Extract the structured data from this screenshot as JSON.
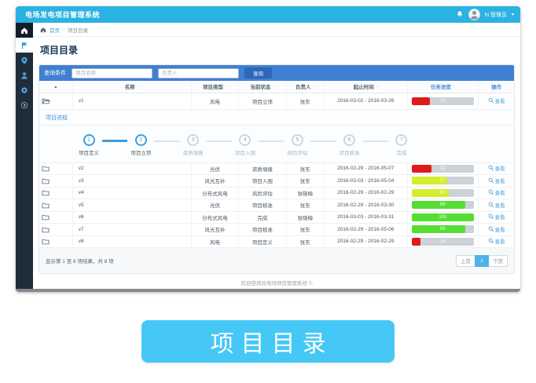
{
  "topbar": {
    "title": "电场发电项目管理系统",
    "user_greeting": "hi 管理员",
    "icons": [
      "bell-icon",
      "avatar",
      "caret-down-icon"
    ]
  },
  "sidebar": {
    "icons": [
      "home-icon",
      "flag-icon",
      "location-pin-icon",
      "user-icon",
      "gear-icon",
      "power-icon"
    ]
  },
  "breadcrumb": {
    "home": "首页",
    "separator": "›",
    "current": "项目目录"
  },
  "page": {
    "title": "项目目录"
  },
  "search": {
    "label": "查询条件",
    "name_placeholder": "项目名称",
    "owner_placeholder": "负责人",
    "submit": "查询"
  },
  "table": {
    "action_label": "查看",
    "headers": [
      {
        "label": "名称",
        "sortable": true,
        "accent": false
      },
      {
        "label": "项目类型",
        "sortable": true,
        "accent": false
      },
      {
        "label": "当前状态",
        "sortable": true,
        "accent": false
      },
      {
        "label": "负责人",
        "sortable": true,
        "accent": false
      },
      {
        "label": "起止时间",
        "sortable": true,
        "accent": false
      },
      {
        "label": "任务进度",
        "sortable": true,
        "accent": true
      },
      {
        "label": "操作",
        "sortable": false,
        "accent": true
      }
    ],
    "rows": [
      {
        "name": "v1",
        "type": "风电",
        "status": "项目立项",
        "owner": "张东",
        "period": "2016-03-02 - 2016-03-26",
        "progress": 29,
        "bar_color": "#dd1c1a",
        "expanded": true
      },
      {
        "name": "v2",
        "type": "光伏",
        "status": "资质填报",
        "owner": "张东",
        "period": "2016-02-29 - 2016-05-07",
        "progress": 32,
        "bar_color": "#dd1c1a",
        "expanded": false
      },
      {
        "name": "v3",
        "type": "风光互补",
        "status": "项目入围",
        "owner": "张东",
        "period": "2016-03-03 - 2016-05-04",
        "progress": 57,
        "bar_color": "#d4ee2e",
        "expanded": false
      },
      {
        "name": "v4",
        "type": "分布式风电",
        "status": "风险评估",
        "owner": "张晓梅",
        "period": "2016-02-29 - 2016-02-29",
        "progress": 60,
        "bar_color": "#d4ee2e",
        "expanded": false
      },
      {
        "name": "v5",
        "type": "光伏",
        "status": "项目核准",
        "owner": "张东",
        "period": "2016-02-29 - 2016-03-30",
        "progress": 86,
        "bar_color": "#55dd33",
        "expanded": false
      },
      {
        "name": "v6",
        "type": "分布式风电",
        "status": "完成",
        "owner": "张晓梅",
        "period": "2016-03-03 - 2016-03-31",
        "progress": 100,
        "bar_color": "#55dd33",
        "expanded": false
      },
      {
        "name": "v7",
        "type": "风光互补",
        "status": "项目核准",
        "owner": "张东",
        "period": "2016-02-29 - 2016-05-06",
        "progress": 86,
        "bar_color": "#55dd33",
        "expanded": false
      },
      {
        "name": "v8",
        "type": "风电",
        "status": "项目定义",
        "owner": "张东",
        "period": "2016-02-29 - 2016-02-29",
        "progress": 14,
        "bar_color": "#dd1c1a",
        "expanded": false
      }
    ]
  },
  "process": {
    "title": "项目进程",
    "steps": [
      {
        "num": "1",
        "label": "项目定义",
        "active": true
      },
      {
        "num": "2",
        "label": "项目立项",
        "active": true
      },
      {
        "num": "3",
        "label": "资质填报",
        "active": false
      },
      {
        "num": "4",
        "label": "项目入围",
        "active": false
      },
      {
        "num": "5",
        "label": "风险评估",
        "active": false
      },
      {
        "num": "6",
        "label": "项目核准",
        "active": false
      },
      {
        "num": "7",
        "label": "完成",
        "active": false
      }
    ]
  },
  "pagination": {
    "info": "显示第 1 至 8 项结果，共 8 项",
    "prev": "上页",
    "current": "1",
    "next": "下页"
  },
  "footer": {
    "text": "欢迎使用风电场项目管理系统  ©"
  },
  "caption": {
    "label": "项目目录"
  },
  "colors": {
    "topbar": "#29b2e2",
    "sidebar": "#1f2c3a",
    "search_bar": "#4080d2",
    "search_button": "#2f66b8",
    "accent_link": "#4a9fd8",
    "caption_bg": "#45c8f5",
    "progress_track": "#ccd2d7",
    "progress_red": "#dd1c1a",
    "progress_yellow": "#d4ee2e",
    "progress_green": "#55dd33",
    "stepper_active": "#3a9fdc"
  }
}
